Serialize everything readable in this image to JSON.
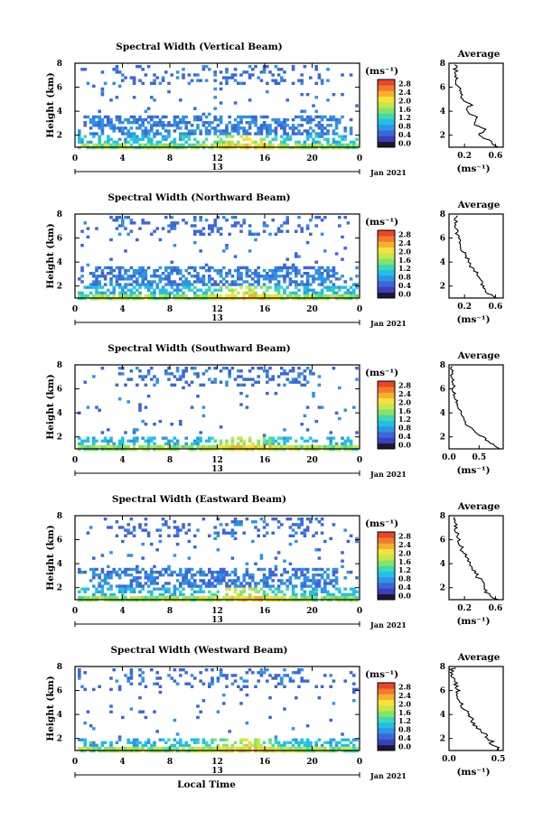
{
  "figure": {
    "xlabel": "Local Time",
    "ylabel": "Height (km)",
    "date_label": "Jan 2021",
    "day_label": "13",
    "units_label": "(ms⁻¹)",
    "avg_title": "Average",
    "avg_xlabel": "(ms⁻¹)",
    "x_ticks": [
      "0",
      "4",
      "8",
      "12",
      "16",
      "20",
      "0"
    ],
    "y_ticks": [
      "2",
      "4",
      "6",
      "8"
    ],
    "colorbar_ticks": [
      "0.0",
      "0.4",
      "0.8",
      "1.2",
      "1.6",
      "2.0",
      "2.4",
      "2.8"
    ],
    "colors": [
      "#1a1a2e",
      "#3a3fbf",
      "#3d66d8",
      "#2f93e6",
      "#20c0e8",
      "#3ed9b0",
      "#86e36a",
      "#c8e64a",
      "#f5e23a",
      "#f7b02e",
      "#f37b2a",
      "#e8462a"
    ]
  },
  "chart_data": [
    {
      "type": "heatmap",
      "title": "Spectral Width (Vertical Beam)",
      "xlim": [
        0,
        24
      ],
      "ylim": [
        1,
        8
      ],
      "zlim": [
        0.0,
        3.0
      ],
      "avg_profile": {
        "xticks": [
          "0.2",
          "0.6"
        ],
        "xlim": [
          0.0,
          0.7
        ],
        "height": [
          1,
          1.5,
          2,
          2.5,
          3,
          3.5,
          4,
          4.5,
          5,
          5.5,
          6,
          6.5,
          7,
          7.5,
          8
        ],
        "width": [
          0.62,
          0.52,
          0.4,
          0.46,
          0.3,
          0.34,
          0.22,
          0.28,
          0.18,
          0.15,
          0.12,
          0.1,
          0.09,
          0.08,
          0.08
        ]
      }
    },
    {
      "type": "heatmap",
      "title": "Spectral Width (Northward Beam)",
      "xlim": [
        0,
        24
      ],
      "ylim": [
        1,
        8
      ],
      "zlim": [
        0.0,
        3.0
      ],
      "avg_profile": {
        "xticks": [
          "0.2",
          "0.6"
        ],
        "xlim": [
          0.0,
          0.7
        ],
        "height": [
          1,
          1.5,
          2,
          2.5,
          3,
          3.5,
          4,
          4.5,
          5,
          5.5,
          6,
          6.5,
          7,
          7.5,
          8
        ],
        "width": [
          0.6,
          0.5,
          0.44,
          0.4,
          0.36,
          0.3,
          0.26,
          0.22,
          0.18,
          0.14,
          0.12,
          0.1,
          0.09,
          0.08,
          0.08
        ]
      }
    },
    {
      "type": "heatmap",
      "title": "Spectral Width (Southward Beam)",
      "xlim": [
        0,
        24
      ],
      "ylim": [
        1,
        8
      ],
      "zlim": [
        0.0,
        3.0
      ],
      "avg_profile": {
        "xticks": [
          "0.0",
          "0.5"
        ],
        "xlim": [
          0.0,
          0.9
        ],
        "height": [
          1,
          1.5,
          2,
          2.5,
          3,
          3.5,
          4,
          4.5,
          5,
          5.5,
          6,
          6.5,
          7,
          7.5,
          8
        ],
        "width": [
          0.85,
          0.7,
          0.55,
          0.4,
          0.3,
          0.25,
          0.2,
          0.16,
          0.12,
          0.1,
          0.08,
          0.06,
          0.05,
          0.04,
          0.04
        ]
      }
    },
    {
      "type": "heatmap",
      "title": "Spectral Width (Eastward Beam)",
      "xlim": [
        0,
        24
      ],
      "ylim": [
        1,
        8
      ],
      "zlim": [
        0.0,
        3.0
      ],
      "avg_profile": {
        "xticks": [
          "0.2",
          "0.6"
        ],
        "xlim": [
          0.0,
          0.7
        ],
        "height": [
          1,
          1.5,
          2,
          2.5,
          3,
          3.5,
          4,
          4.5,
          5,
          5.5,
          6,
          6.5,
          7,
          7.5,
          8
        ],
        "width": [
          0.62,
          0.5,
          0.44,
          0.42,
          0.36,
          0.32,
          0.26,
          0.22,
          0.18,
          0.15,
          0.12,
          0.1,
          0.09,
          0.08,
          0.08
        ]
      }
    },
    {
      "type": "heatmap",
      "title": "Spectral Width (Westward Beam)",
      "xlim": [
        0,
        24
      ],
      "ylim": [
        1,
        8
      ],
      "zlim": [
        0.0,
        3.0
      ],
      "avg_profile": {
        "xticks": [
          "0.0",
          "0.5"
        ],
        "xlim": [
          0.0,
          0.55
        ],
        "height": [
          1,
          1.5,
          2,
          2.5,
          3,
          3.5,
          4,
          4.5,
          5,
          5.5,
          6,
          6.5,
          7,
          7.5,
          8
        ],
        "width": [
          0.52,
          0.45,
          0.4,
          0.34,
          0.28,
          0.24,
          0.18,
          0.16,
          0.12,
          0.1,
          0.08,
          0.06,
          0.05,
          0.04,
          0.04
        ]
      }
    }
  ]
}
